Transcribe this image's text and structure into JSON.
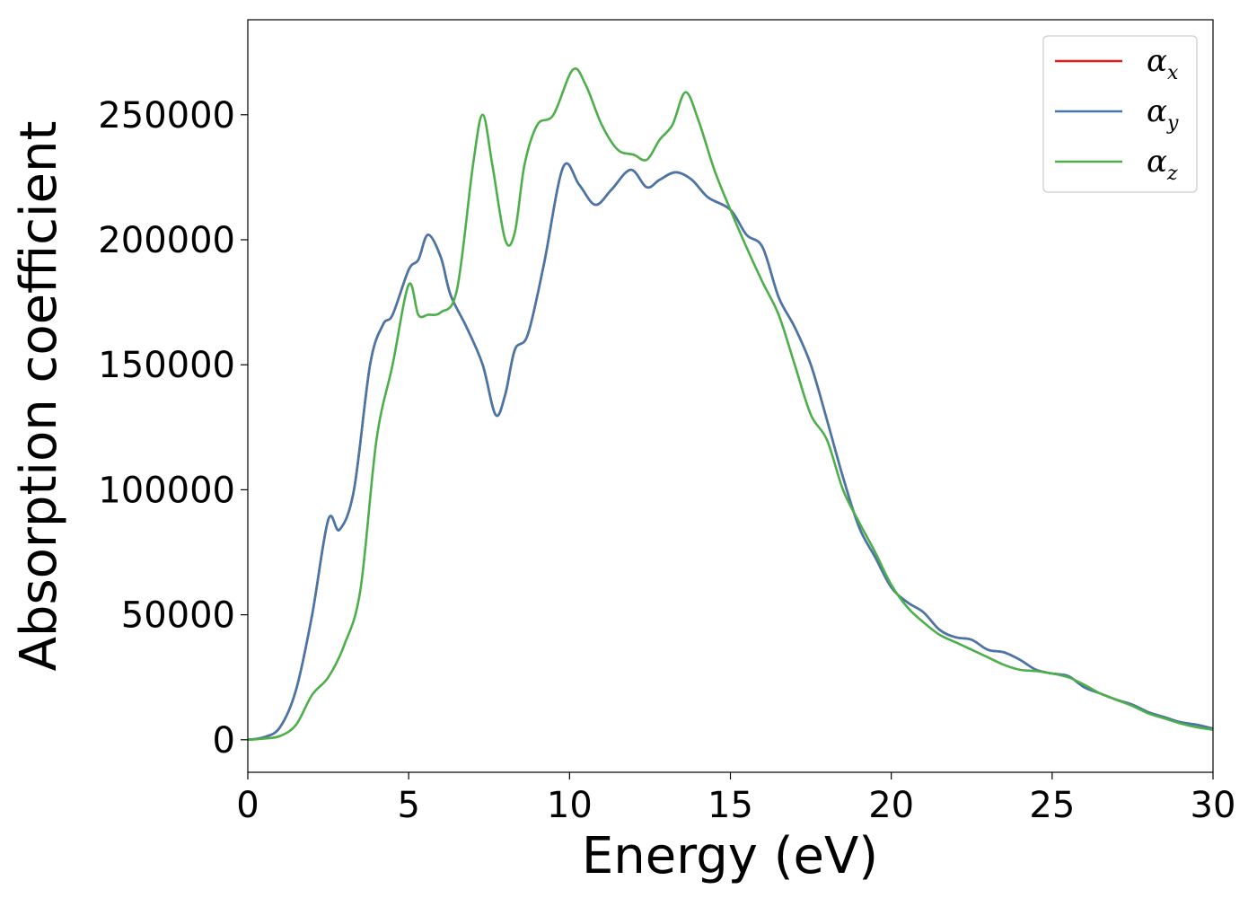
{
  "chart_data": {
    "type": "line",
    "xlabel": "Energy (eV)",
    "ylabel": "Absorption coefficient",
    "xlim": [
      0,
      30
    ],
    "ylim": [
      -13000,
      288000
    ],
    "xticks": [
      0,
      5,
      10,
      15,
      20,
      25,
      30
    ],
    "xtick_labels": [
      "0",
      "5",
      "10",
      "15",
      "20",
      "25",
      "30"
    ],
    "yticks": [
      0,
      50000,
      100000,
      150000,
      200000,
      250000
    ],
    "ytick_labels": [
      "0",
      "50000",
      "100000",
      "150000",
      "200000",
      "250000"
    ],
    "grid": false,
    "legend_position": "top-right",
    "series": [
      {
        "name": "α",
        "subscript": "x",
        "color": "#e41a1c",
        "x": [
          0,
          0.5,
          1.0,
          1.5,
          2.0,
          2.5,
          2.85,
          3.3,
          3.8,
          4.2,
          4.5,
          5.0,
          5.3,
          5.6,
          6.0,
          6.3,
          6.8,
          7.3,
          7.7,
          8.0,
          8.3,
          8.7,
          9.2,
          9.8,
          10.3,
          10.8,
          11.3,
          11.9,
          12.4,
          12.8,
          13.3,
          13.8,
          14.3,
          15.0,
          15.5,
          16.0,
          16.5,
          17.0,
          17.5,
          18.0,
          18.5,
          19.0,
          19.5,
          20.0,
          20.5,
          21.0,
          21.5,
          22.0,
          22.5,
          23.0,
          23.5,
          24.0,
          24.5,
          25.0,
          25.5,
          26.0,
          26.5,
          27.0,
          27.5,
          28.0,
          28.5,
          29.0,
          29.5,
          30.0
        ],
        "y": [
          0,
          1000,
          5000,
          20000,
          50000,
          88000,
          84000,
          100000,
          150000,
          166000,
          170000,
          188000,
          192000,
          202000,
          193000,
          178000,
          165000,
          150000,
          130000,
          138000,
          156000,
          162000,
          190000,
          229000,
          222000,
          214000,
          220000,
          228000,
          221000,
          224000,
          227000,
          224000,
          217000,
          212000,
          202000,
          197000,
          177000,
          165000,
          150000,
          128000,
          105000,
          85000,
          73000,
          61000,
          55000,
          51000,
          44000,
          41000,
          40000,
          36000,
          35000,
          32000,
          28000,
          26500,
          25500,
          21000,
          18500,
          16000,
          14000,
          11000,
          9000,
          7000,
          6000,
          4500
        ]
      },
      {
        "name": "α",
        "subscript": "y",
        "color": "#4477aa",
        "x": [
          0,
          0.5,
          1.0,
          1.5,
          2.0,
          2.5,
          2.85,
          3.3,
          3.8,
          4.2,
          4.5,
          5.0,
          5.3,
          5.6,
          6.0,
          6.3,
          6.8,
          7.3,
          7.7,
          8.0,
          8.3,
          8.7,
          9.2,
          9.8,
          10.3,
          10.8,
          11.3,
          11.9,
          12.4,
          12.8,
          13.3,
          13.8,
          14.3,
          15.0,
          15.5,
          16.0,
          16.5,
          17.0,
          17.5,
          18.0,
          18.5,
          19.0,
          19.5,
          20.0,
          20.5,
          21.0,
          21.5,
          22.0,
          22.5,
          23.0,
          23.5,
          24.0,
          24.5,
          25.0,
          25.5,
          26.0,
          26.5,
          27.0,
          27.5,
          28.0,
          28.5,
          29.0,
          29.5,
          30.0
        ],
        "y": [
          0,
          1000,
          5000,
          20000,
          50000,
          88000,
          84000,
          100000,
          150000,
          166000,
          170000,
          188000,
          192000,
          202000,
          193000,
          178000,
          165000,
          150000,
          130000,
          138000,
          156000,
          162000,
          190000,
          229000,
          222000,
          214000,
          220000,
          228000,
          221000,
          224000,
          227000,
          224000,
          217000,
          212000,
          202000,
          197000,
          177000,
          165000,
          150000,
          128000,
          105000,
          85000,
          73000,
          61000,
          55000,
          51000,
          44000,
          41000,
          40000,
          36000,
          35000,
          32000,
          28000,
          26500,
          25500,
          21000,
          18500,
          16000,
          14000,
          11000,
          9000,
          7000,
          6000,
          4500
        ]
      },
      {
        "name": "α",
        "subscript": "z",
        "color": "#4daf4a",
        "x": [
          0,
          0.5,
          1.0,
          1.5,
          2.0,
          2.5,
          3.0,
          3.5,
          4.0,
          4.5,
          5.0,
          5.3,
          5.6,
          6.0,
          6.5,
          7.0,
          7.3,
          7.6,
          8.0,
          8.3,
          8.6,
          9.0,
          9.5,
          10.1,
          10.5,
          11.0,
          11.5,
          12.0,
          12.4,
          12.8,
          13.2,
          13.6,
          14.0,
          14.5,
          15.0,
          15.5,
          16.0,
          16.5,
          17.0,
          17.5,
          18.0,
          18.5,
          19.0,
          19.5,
          20.0,
          20.5,
          21.0,
          21.5,
          22.0,
          22.5,
          23.0,
          23.5,
          24.0,
          24.5,
          25.0,
          25.5,
          26.0,
          26.5,
          27.0,
          27.5,
          28.0,
          28.5,
          29.0,
          29.5,
          30.0
        ],
        "y": [
          0,
          500,
          1500,
          6000,
          18000,
          25000,
          38000,
          60000,
          120000,
          150000,
          182000,
          170000,
          170000,
          171000,
          180000,
          230000,
          250000,
          230000,
          200000,
          203000,
          230000,
          246000,
          250000,
          268000,
          262000,
          246000,
          236000,
          234000,
          232000,
          240000,
          246000,
          259000,
          248000,
          228000,
          212000,
          197000,
          183000,
          170000,
          150000,
          130000,
          120000,
          100000,
          87000,
          75000,
          62000,
          53000,
          47000,
          42000,
          39000,
          36000,
          33000,
          30000,
          28000,
          27500,
          26500,
          25000,
          22000,
          18500,
          16000,
          13500,
          10500,
          8500,
          6500,
          5000,
          4000
        ]
      }
    ]
  }
}
